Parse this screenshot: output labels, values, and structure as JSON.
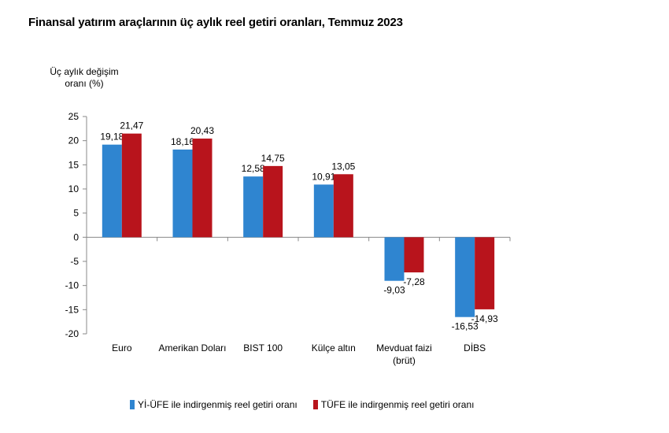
{
  "chart_data": {
    "type": "bar",
    "title": "Finansal yatırım araçlarının üç aylık reel getiri oranları, Temmuz 2023",
    "ylabel_lines": [
      "Üç aylık değişim",
      "oranı (%)"
    ],
    "xlabel": "",
    "ylim": [
      -20,
      25
    ],
    "yticks": [
      25,
      20,
      15,
      10,
      5,
      0,
      -5,
      -10,
      -15,
      -20
    ],
    "categories": [
      "Euro",
      "Amerikan Doları",
      "BIST 100",
      "Külçe altın",
      "Mevduat faizi\n(brüt)",
      "DİBS"
    ],
    "series": [
      {
        "name": "Yİ-ÜFE ile indirgenmiş reel getiri oranı",
        "color": "#2f85d0",
        "values": [
          19.18,
          18.16,
          12.58,
          10.91,
          -9.03,
          -16.53
        ],
        "labels": [
          "19,18",
          "18,16",
          "12,58",
          "10,91",
          "-9,03",
          "-16,53"
        ]
      },
      {
        "name": "TÜFE ile indirgenmiş reel getiri oranı",
        "color": "#b8141c",
        "values": [
          21.47,
          20.43,
          14.75,
          13.05,
          -7.28,
          -14.93
        ],
        "labels": [
          "21,47",
          "20,43",
          "14,75",
          "13,05",
          "-7,28",
          "-14,93"
        ]
      }
    ],
    "grid": false,
    "legend_position": "bottom"
  }
}
